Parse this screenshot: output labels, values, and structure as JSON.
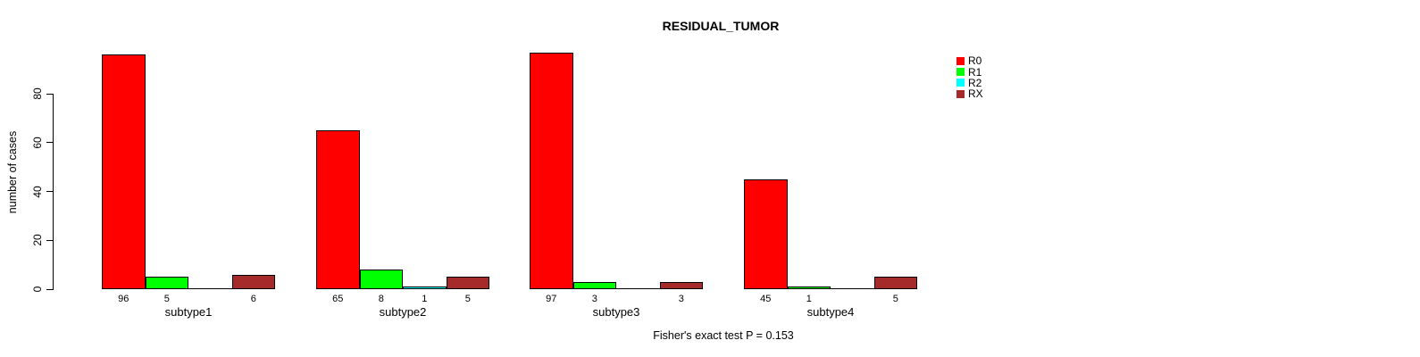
{
  "chart_data": {
    "type": "bar",
    "title": "RESIDUAL_TUMOR",
    "xlabel": "",
    "ylabel": "number of cases",
    "categories": [
      "subtype1",
      "subtype2",
      "subtype3",
      "subtype4"
    ],
    "series": [
      {
        "name": "R0",
        "color": "#FF0000",
        "values": [
          96,
          65,
          97,
          45
        ]
      },
      {
        "name": "R1",
        "color": "#00FF00",
        "values": [
          5,
          8,
          3,
          1
        ]
      },
      {
        "name": "R2",
        "color": "#00FFFF",
        "values": [
          0,
          1,
          0,
          0
        ]
      },
      {
        "name": "RX",
        "color": "#A52A2A",
        "values": [
          6,
          5,
          3,
          5
        ]
      }
    ],
    "bar_value_labels": [
      [
        "96",
        "5",
        "",
        "6"
      ],
      [
        "65",
        "8",
        "1",
        "5"
      ],
      [
        "97",
        "3",
        "",
        "3"
      ],
      [
        "45",
        "1",
        "",
        "5"
      ]
    ],
    "y_ticks": [
      0,
      20,
      40,
      60,
      80
    ],
    "ylim": [
      0,
      80
    ],
    "grid": false,
    "legend_position": "right",
    "legend_labels": [
      "R0",
      "R1",
      "R2",
      "RX"
    ],
    "footnote": "Fisher's exact test P = 0.153",
    "bar_border_color": "#000000",
    "text_color": "#000000",
    "background_color": "#FFFFFF"
  }
}
